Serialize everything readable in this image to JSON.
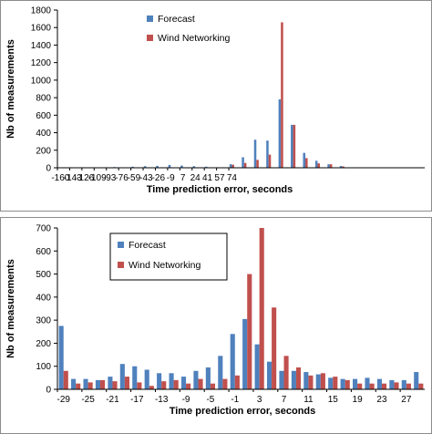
{
  "chart_data": [
    {
      "type": "bar",
      "xlabel": "Time prediction error, seconds",
      "ylabel": "Nb of measurements",
      "ylim": [
        0,
        1800
      ],
      "yticks": [
        0,
        200,
        400,
        600,
        800,
        1000,
        1200,
        1400,
        1600,
        1800
      ],
      "x_tick_labels": [
        "-160",
        "-143",
        "-126",
        "-109",
        "-93",
        "-76",
        "-59",
        "-43",
        "-26",
        "-9",
        "7",
        "24",
        "41",
        "57",
        "74"
      ],
      "grid": false,
      "legend_position": "top-left",
      "colors": {
        "forecast": "#4F81BD",
        "wind": "#C0504D"
      },
      "series": [
        {
          "name": "Forecast",
          "values": [
            0,
            0,
            0,
            0,
            0,
            0,
            0,
            0,
            0,
            8,
            0,
            0,
            12,
            0,
            18,
            0,
            22,
            0,
            32,
            0,
            25,
            0,
            18,
            0,
            12,
            0,
            5,
            0,
            40,
            0,
            120,
            0,
            320,
            0,
            310,
            0,
            780,
            0,
            490,
            0,
            170,
            0,
            80,
            0,
            40,
            0,
            20,
            0,
            5,
            0,
            0,
            0,
            0,
            0,
            0,
            0,
            0,
            0,
            0,
            0
          ]
        },
        {
          "name": "Wind Networking",
          "values": [
            0,
            0,
            0,
            0,
            0,
            0,
            0,
            0,
            0,
            0,
            0,
            0,
            0,
            0,
            0,
            0,
            0,
            0,
            0,
            0,
            0,
            0,
            0,
            0,
            0,
            0,
            0,
            0,
            35,
            0,
            55,
            0,
            90,
            0,
            150,
            0,
            1660,
            0,
            490,
            0,
            110,
            0,
            50,
            0,
            40,
            0,
            15,
            0,
            3,
            0,
            0,
            0,
            0,
            0,
            0,
            0,
            0,
            0,
            0,
            0
          ]
        }
      ]
    },
    {
      "type": "bar",
      "xlabel": "Time prediction error, seconds",
      "ylabel": "Nb of measurements",
      "ylim": [
        0,
        700
      ],
      "yticks": [
        0,
        100,
        200,
        300,
        400,
        500,
        600,
        700
      ],
      "x_tick_labels": [
        "-29",
        "-25",
        "-21",
        "-17",
        "-13",
        "-9",
        "-5",
        "-1",
        "3",
        "7",
        "11",
        "15",
        "19",
        "23",
        "27"
      ],
      "grid": false,
      "legend_position": "top-left",
      "colors": {
        "forecast": "#4F81BD",
        "wind": "#C0504D"
      },
      "series": [
        {
          "name": "Forecast",
          "values": [
            275,
            45,
            45,
            40,
            55,
            110,
            100,
            85,
            70,
            70,
            55,
            80,
            95,
            145,
            240,
            305,
            195,
            120,
            80,
            80,
            75,
            65,
            50,
            45,
            45,
            50,
            45,
            40,
            40,
            75
          ]
        },
        {
          "name": "Wind Networking",
          "values": [
            80,
            25,
            30,
            40,
            35,
            55,
            30,
            15,
            35,
            40,
            25,
            45,
            25,
            45,
            60,
            500,
            700,
            355,
            145,
            95,
            60,
            70,
            55,
            40,
            25,
            25,
            25,
            30,
            25,
            25
          ]
        }
      ]
    }
  ]
}
